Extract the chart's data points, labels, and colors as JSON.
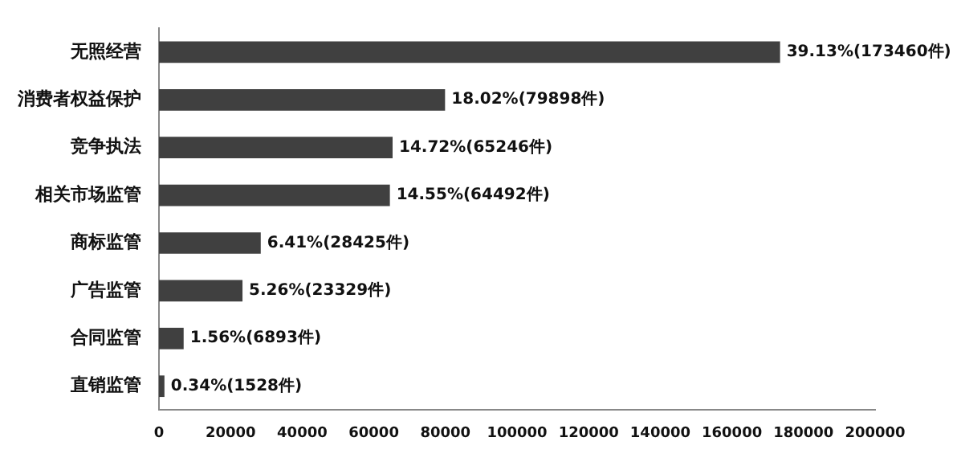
{
  "chart_data": {
    "type": "bar",
    "orientation": "horizontal",
    "categories": [
      "无照经营",
      "消费者权益保护",
      "竞争执法",
      "相关市场监管",
      "商标监管",
      "广告监管",
      "合同监管",
      "直销监管"
    ],
    "values": [
      173460,
      79898,
      65246,
      64492,
      28425,
      23329,
      6893,
      1528
    ],
    "value_labels": [
      "39.13%(173460件)",
      "18.02%(79898件)",
      "14.72%(65246件)",
      "14.55%(64492件)",
      "6.41%(28425件)",
      "5.26%(23329件)",
      "1.56%(6893件)",
      "0.34%(1528件)"
    ],
    "color": "#404040",
    "xlim": [
      0,
      200000
    ],
    "xticks": [
      0,
      20000,
      40000,
      60000,
      80000,
      100000,
      120000,
      140000,
      160000,
      180000,
      200000
    ],
    "grid": false,
    "legend": false
  }
}
